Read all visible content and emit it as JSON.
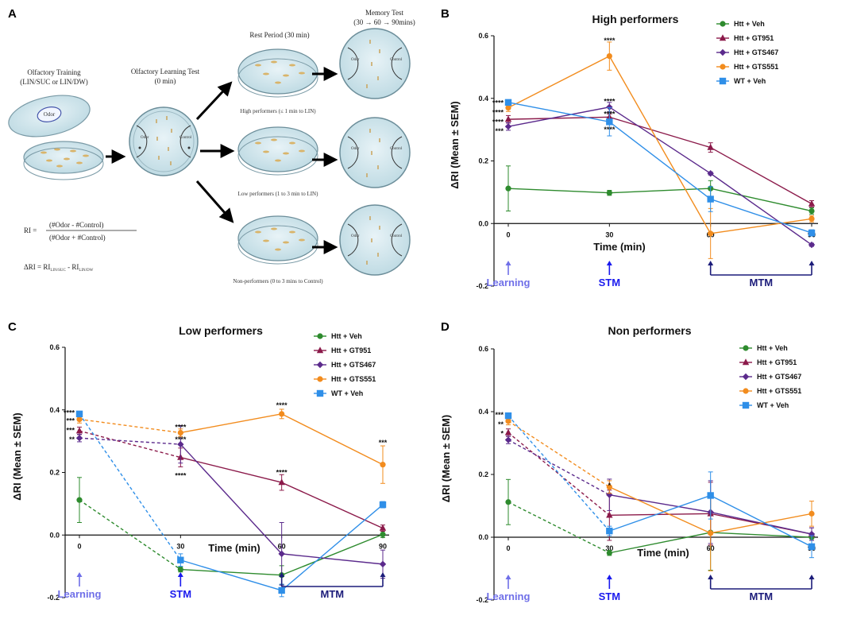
{
  "panel_letters": [
    "A",
    "B",
    "C",
    "D"
  ],
  "diagram": {
    "training_title": "Olfactory Training",
    "training_subtitle": "(LIN/SUC or LIN/DW)",
    "odor_label": "Odor",
    "learning_title": "Olfactory Learning Test",
    "learning_subtitle": "(0 min)",
    "rest_title": "Rest Period (30 min)",
    "memory_title": "Memory Test",
    "memory_subtitle": "(30 → 60 → 90mins)",
    "high_caption": "High performers (≤ 1 min to LIN)",
    "low_caption": "Low performers (1 to 3 min to LIN)",
    "non_caption": "Non-performers (0 to 3 mins to Control)",
    "dish_odor": "Odor",
    "dish_control": "Control",
    "dish_line": "Line",
    "ri_left": "RI =",
    "ri_numerator": "(#Odor - #Control)",
    "ri_denominator": "(#Odor + #Control)",
    "dri_formula": "ΔRI =  RI",
    "dri_sub1": "LIN/SUC",
    "dri_minus": " - RI",
    "dri_sub2": "LIN/DW"
  },
  "phase_labels": {
    "learning": "Learning",
    "stm": "STM",
    "mtm": "MTM"
  },
  "colors": {
    "Htt + Veh": "#2e8b2e",
    "Htt + GT951": "#8b1a4a",
    "Htt + GTS467": "#5b2a8c",
    "Htt + GTS551": "#f28c1e",
    "WT + Veh": "#2f8fe8",
    "learning": "#6f6fe8",
    "stm": "#1a1aee",
    "mtm": "#1c1c7a"
  },
  "chart_data": [
    {
      "panel": "B",
      "type": "line",
      "title": "High performers",
      "xlabel": "Time (min)",
      "ylabel": "ΔRI (Mean ± SEM)",
      "x": [
        0,
        30,
        60,
        90
      ],
      "xticks": [
        "0",
        "30",
        "60",
        "90"
      ],
      "ylim": [
        -0.2,
        0.6
      ],
      "yticks": [
        "-0.2",
        "0.0",
        "0.2",
        "0.4",
        "0.6"
      ],
      "legend_position": "top-right",
      "series": [
        {
          "name": "Htt + Veh",
          "marker": "circle",
          "values": [
            0.112,
            0.098,
            0.112,
            0.04
          ],
          "errors": [
            0.072,
            0.008,
            0.025,
            0.01
          ],
          "dashed_first": false
        },
        {
          "name": "Htt + GT951",
          "marker": "triangle",
          "values": [
            0.333,
            0.34,
            0.243,
            0.063
          ],
          "errors": [
            0.012,
            0.01,
            0.015,
            0.01
          ],
          "dashed_first": false
        },
        {
          "name": "Htt + GTS467",
          "marker": "diamond",
          "values": [
            0.31,
            0.372,
            0.16,
            -0.068
          ],
          "errors": [
            0.012,
            0.015,
            0.005,
            0.005
          ],
          "dashed_first": false
        },
        {
          "name": "Htt + GTS551",
          "marker": "circle",
          "values": [
            0.37,
            0.535,
            -0.032,
            0.015
          ],
          "errors": [
            0.012,
            0.045,
            0.08,
            0.01
          ],
          "dashed_first": false
        },
        {
          "name": "WT + Veh",
          "marker": "square",
          "values": [
            0.387,
            0.325,
            0.078,
            -0.03
          ],
          "errors": [
            0.008,
            0.045,
            0.04,
            0.01
          ],
          "dashed_first": false
        }
      ],
      "annotations": [
        {
          "x": 0,
          "y": 0.385,
          "text": "****"
        },
        {
          "x": 0,
          "y": 0.355,
          "text": "****"
        },
        {
          "x": 0,
          "y": 0.325,
          "text": "****"
        },
        {
          "x": 0,
          "y": 0.295,
          "text": "***"
        },
        {
          "x": 30,
          "y": 0.585,
          "text": "****"
        },
        {
          "x": 30,
          "y": 0.39,
          "text": "****"
        },
        {
          "x": 30,
          "y": 0.35,
          "text": "****"
        },
        {
          "x": 30,
          "y": 0.3,
          "text": "****"
        }
      ]
    },
    {
      "panel": "C",
      "type": "line",
      "title": "Low performers",
      "xlabel": "Time (min)",
      "ylabel": "ΔRI (Mean ± SEM)",
      "x": [
        0,
        30,
        60,
        90
      ],
      "xticks": [
        "0",
        "30",
        "60",
        "90"
      ],
      "ylim": [
        -0.2,
        0.6
      ],
      "yticks": [
        "-0.2",
        "0.0",
        "0.2",
        "0.4",
        "0.6"
      ],
      "legend_position": "top-right",
      "series": [
        {
          "name": "Htt + Veh",
          "marker": "circle",
          "values": [
            0.112,
            -0.11,
            -0.128,
            0.002
          ],
          "errors": [
            0.072,
            0.008,
            0.03,
            0.01
          ],
          "dashed_first": true
        },
        {
          "name": "Htt + GT951",
          "marker": "triangle",
          "values": [
            0.333,
            0.248,
            0.168,
            0.022
          ],
          "errors": [
            0.012,
            0.03,
            0.025,
            0.01
          ],
          "dashed_first": true
        },
        {
          "name": "Htt + GTS467",
          "marker": "diamond",
          "values": [
            0.31,
            0.29,
            -0.06,
            -0.093
          ],
          "errors": [
            0.012,
            0.06,
            0.1,
            0.045
          ],
          "dashed_first": true
        },
        {
          "name": "Htt + GTS551",
          "marker": "circle",
          "values": [
            0.37,
            0.327,
            0.387,
            0.225
          ],
          "errors": [
            0.012,
            0.012,
            0.015,
            0.06
          ],
          "dashed_first": true
        },
        {
          "name": "WT + Veh",
          "marker": "square",
          "values": [
            0.387,
            -0.08,
            -0.177,
            0.097
          ],
          "errors": [
            0.008,
            0.02,
            0.02,
            0.01
          ],
          "dashed_first": true
        }
      ],
      "annotations": [
        {
          "x": 0,
          "y": 0.39,
          "text": "****"
        },
        {
          "x": 0,
          "y": 0.365,
          "text": "***"
        },
        {
          "x": 0,
          "y": 0.335,
          "text": "***"
        },
        {
          "x": 0,
          "y": 0.305,
          "text": "**"
        },
        {
          "x": 30,
          "y": 0.345,
          "text": "****"
        },
        {
          "x": 30,
          "y": 0.305,
          "text": "****"
        },
        {
          "x": 30,
          "y": 0.19,
          "text": "****"
        },
        {
          "x": 60,
          "y": 0.415,
          "text": "****"
        },
        {
          "x": 60,
          "y": 0.2,
          "text": "****"
        },
        {
          "x": 90,
          "y": 0.295,
          "text": "***"
        }
      ]
    },
    {
      "panel": "D",
      "type": "line",
      "title": "Non performers",
      "xlabel": "Time (min)",
      "ylabel": "ΔRI (Mean ± SEM)",
      "x": [
        0,
        30,
        60,
        90
      ],
      "xticks": [
        "0",
        "30",
        "60",
        "90"
      ],
      "ylim": [
        -0.2,
        0.6
      ],
      "yticks": [
        "-0.2",
        "0.0",
        "0.2",
        "0.4",
        "0.6"
      ],
      "legend_position": "top-right",
      "series": [
        {
          "name": "Htt + Veh",
          "marker": "circle",
          "values": [
            0.112,
            -0.05,
            0.015,
            0.0
          ],
          "errors": [
            0.072,
            0.008,
            0.12,
            0.01
          ],
          "dashed_first": true
        },
        {
          "name": "Htt + GT951",
          "marker": "triangle",
          "values": [
            0.333,
            0.07,
            0.075,
            0.01
          ],
          "errors": [
            0.012,
            0.08,
            0.1,
            0.02
          ],
          "dashed_first": true
        },
        {
          "name": "Htt + GTS467",
          "marker": "diamond",
          "values": [
            0.31,
            0.135,
            0.08,
            0.01
          ],
          "errors": [
            0.012,
            0.05,
            0.1,
            0.02
          ],
          "dashed_first": true
        },
        {
          "name": "Htt + GTS551",
          "marker": "circle",
          "values": [
            0.37,
            0.16,
            0.013,
            0.075
          ],
          "errors": [
            0.012,
            0.02,
            0.12,
            0.04
          ],
          "dashed_first": true
        },
        {
          "name": "WT + Veh",
          "marker": "square",
          "values": [
            0.387,
            0.02,
            0.133,
            -0.03
          ],
          "errors": [
            0.008,
            0.015,
            0.075,
            0.035
          ],
          "dashed_first": true
        }
      ],
      "annotations": [
        {
          "x": 0,
          "y": 0.39,
          "text": "***"
        },
        {
          "x": 0,
          "y": 0.36,
          "text": "**"
        },
        {
          "x": 0,
          "y": 0.33,
          "text": "*"
        },
        {
          "x": 30,
          "y": 0.165,
          "text": "*"
        }
      ]
    }
  ]
}
